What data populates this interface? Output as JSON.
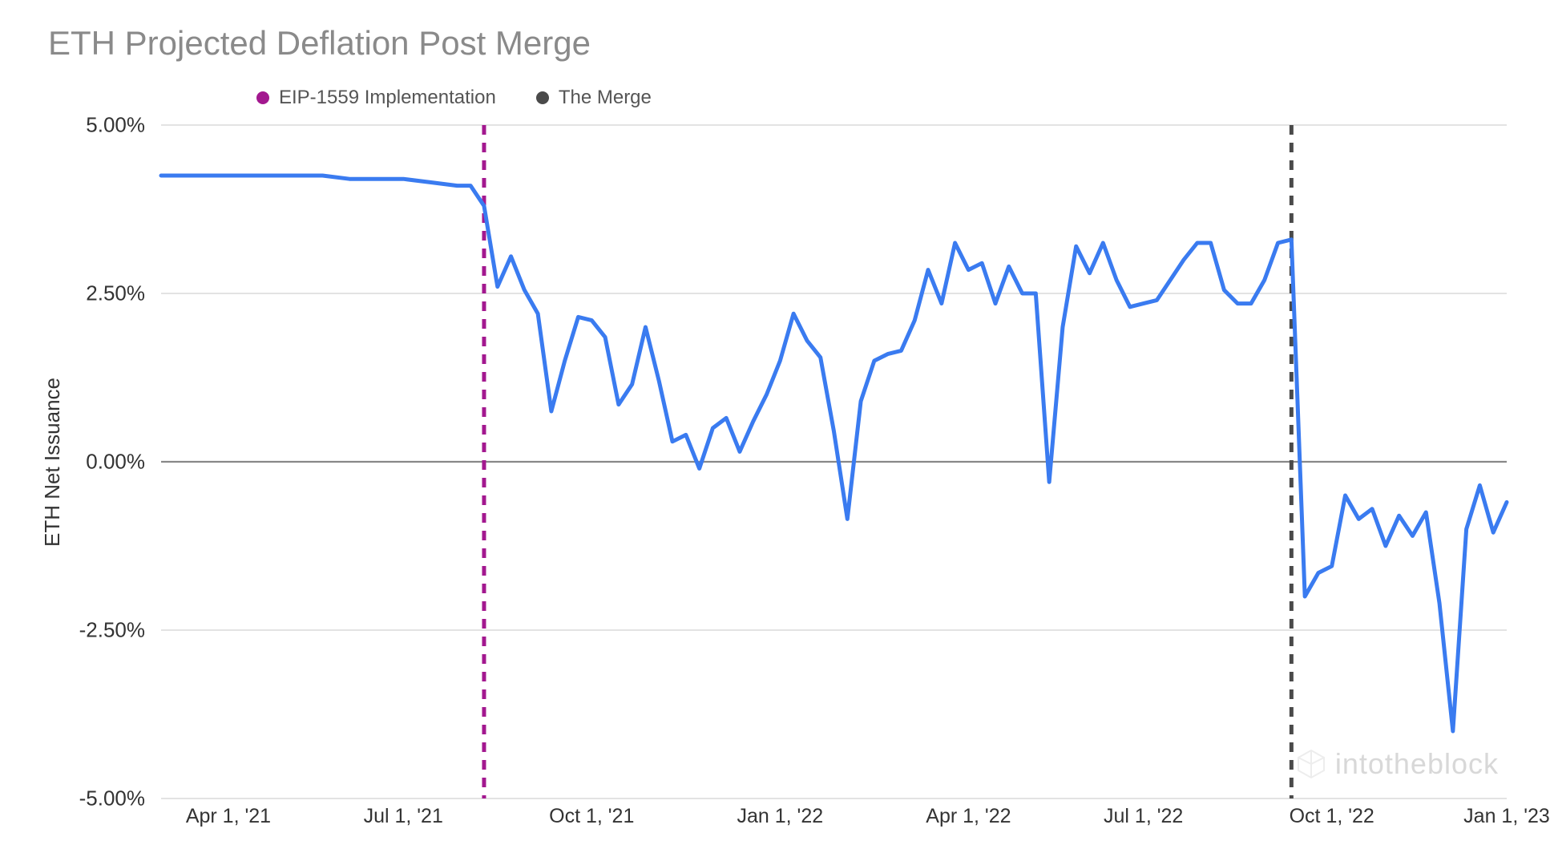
{
  "title": "ETH Projected Deflation Post Merge",
  "ylabel": "ETH Net Issuance",
  "legend": [
    {
      "label": "EIP-1559 Implementation",
      "color": "#a3188f"
    },
    {
      "label": "The Merge",
      "color": "#4a4a4a"
    }
  ],
  "chart": {
    "type": "line",
    "background_color": "#ffffff",
    "grid_color": "#d2d2d2",
    "zero_line_color": "#888888",
    "line_color": "#3a7bf0",
    "line_width": 5,
    "title_fontsize": 42,
    "title_color": "#8a8a8a",
    "label_fontsize": 26,
    "label_color": "#333333",
    "ymin": -5.0,
    "ymax": 5.0,
    "ytick_step": 2.5,
    "yticks": [
      {
        "value": 5.0,
        "label": "5.00%"
      },
      {
        "value": 2.5,
        "label": "2.50%"
      },
      {
        "value": 0.0,
        "label": "0.00%"
      },
      {
        "value": -2.5,
        "label": "-2.50%"
      },
      {
        "value": -5.0,
        "label": "-5.00%"
      }
    ],
    "xmin": 0,
    "xmax": 100,
    "xticks": [
      {
        "value": 5,
        "label": "Apr 1, '21"
      },
      {
        "value": 18,
        "label": "Jul 1, '21"
      },
      {
        "value": 32,
        "label": "Oct 1, '21"
      },
      {
        "value": 46,
        "label": "Jan 1, '22"
      },
      {
        "value": 60,
        "label": "Apr 1, '22"
      },
      {
        "value": 73,
        "label": "Jul 1, '22"
      },
      {
        "value": 87,
        "label": "Oct 1, '22"
      },
      {
        "value": 100,
        "label": "Jan 1, '23"
      }
    ],
    "vlines": [
      {
        "x": 24,
        "color": "#a3188f",
        "width": 5,
        "dash": "12,10"
      },
      {
        "x": 84,
        "color": "#4a4a4a",
        "width": 5,
        "dash": "12,10"
      }
    ],
    "series": {
      "name": "ETH Net Issuance",
      "points": [
        [
          0,
          4.25
        ],
        [
          2,
          4.25
        ],
        [
          4,
          4.25
        ],
        [
          6,
          4.25
        ],
        [
          8,
          4.25
        ],
        [
          10,
          4.25
        ],
        [
          12,
          4.25
        ],
        [
          14,
          4.2
        ],
        [
          16,
          4.2
        ],
        [
          18,
          4.2
        ],
        [
          20,
          4.15
        ],
        [
          22,
          4.1
        ],
        [
          23,
          4.1
        ],
        [
          24,
          3.8
        ],
        [
          25,
          2.6
        ],
        [
          26,
          3.05
        ],
        [
          27,
          2.55
        ],
        [
          28,
          2.2
        ],
        [
          29,
          0.75
        ],
        [
          30,
          1.5
        ],
        [
          31,
          2.15
        ],
        [
          32,
          2.1
        ],
        [
          33,
          1.85
        ],
        [
          34,
          0.85
        ],
        [
          35,
          1.15
        ],
        [
          36,
          2.0
        ],
        [
          37,
          1.2
        ],
        [
          38,
          0.3
        ],
        [
          39,
          0.4
        ],
        [
          40,
          -0.1
        ],
        [
          41,
          0.5
        ],
        [
          42,
          0.65
        ],
        [
          43,
          0.15
        ],
        [
          44,
          0.6
        ],
        [
          45,
          1.0
        ],
        [
          46,
          1.5
        ],
        [
          47,
          2.2
        ],
        [
          48,
          1.8
        ],
        [
          49,
          1.55
        ],
        [
          50,
          0.45
        ],
        [
          51,
          -0.85
        ],
        [
          52,
          0.9
        ],
        [
          53,
          1.5
        ],
        [
          54,
          1.6
        ],
        [
          55,
          1.65
        ],
        [
          56,
          2.1
        ],
        [
          57,
          2.85
        ],
        [
          58,
          2.35
        ],
        [
          59,
          3.25
        ],
        [
          60,
          2.85
        ],
        [
          61,
          2.95
        ],
        [
          62,
          2.35
        ],
        [
          63,
          2.9
        ],
        [
          64,
          2.5
        ],
        [
          65,
          2.5
        ],
        [
          66,
          -0.3
        ],
        [
          67,
          2.0
        ],
        [
          68,
          3.2
        ],
        [
          69,
          2.8
        ],
        [
          70,
          3.25
        ],
        [
          71,
          2.7
        ],
        [
          72,
          2.3
        ],
        [
          73,
          2.35
        ],
        [
          74,
          2.4
        ],
        [
          75,
          2.7
        ],
        [
          76,
          3.0
        ],
        [
          77,
          3.25
        ],
        [
          78,
          3.25
        ],
        [
          79,
          2.55
        ],
        [
          80,
          2.35
        ],
        [
          81,
          2.35
        ],
        [
          82,
          2.7
        ],
        [
          83,
          3.25
        ],
        [
          84,
          3.3
        ],
        [
          85,
          -2.0
        ],
        [
          86,
          -1.65
        ],
        [
          87,
          -1.55
        ],
        [
          88,
          -0.5
        ],
        [
          89,
          -0.85
        ],
        [
          90,
          -0.7
        ],
        [
          91,
          -1.25
        ],
        [
          92,
          -0.8
        ],
        [
          93,
          -1.1
        ],
        [
          94,
          -0.75
        ],
        [
          95,
          -2.1
        ],
        [
          96,
          -4.0
        ],
        [
          97,
          -1.0
        ],
        [
          98,
          -0.35
        ],
        [
          99,
          -1.05
        ],
        [
          100,
          -0.6
        ]
      ]
    }
  },
  "watermark": "intotheblock"
}
